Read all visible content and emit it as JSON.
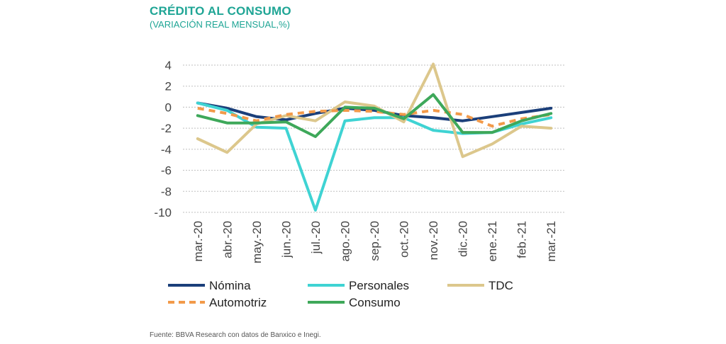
{
  "title": "CRÉDITO AL CONSUMO",
  "subtitle": "(VARIACIÓN REAL MENSUAL,%)",
  "source": "Fuente: BBVA Research con datos de Banxico e Inegi.",
  "chart_data": {
    "type": "line",
    "categories": [
      "mar.-20",
      "abr.-20",
      "may.-20",
      "jun.-20",
      "jul.-20",
      "ago.-20",
      "sep.-20",
      "oct.-20",
      "nov.-20",
      "dic.-20",
      "ene.-21",
      "feb.-21",
      "mar.-21"
    ],
    "ylim": [
      -10,
      4
    ],
    "yticks": [
      4,
      2,
      0,
      -2,
      -4,
      -6,
      -8,
      -10
    ],
    "grid": true,
    "legend_position": "bottom",
    "series": [
      {
        "name": "Nómina",
        "color": "#1b3f7a",
        "dash": false,
        "values": [
          0.4,
          -0.1,
          -0.9,
          -1.2,
          -0.6,
          -0.1,
          -0.3,
          -0.8,
          -1.0,
          -1.3,
          -0.9,
          -0.5,
          -0.1
        ]
      },
      {
        "name": "Personales",
        "color": "#3fd3d3",
        "dash": false,
        "values": [
          0.4,
          -0.3,
          -1.9,
          -2.0,
          -9.8,
          -1.3,
          -1.0,
          -1.0,
          -2.2,
          -2.5,
          -2.4,
          -1.6,
          -1.0
        ]
      },
      {
        "name": "TDC",
        "color": "#dcc78c",
        "dash": false,
        "values": [
          -3.0,
          -4.3,
          -1.6,
          -0.8,
          -1.3,
          0.5,
          0.1,
          -1.4,
          4.1,
          -4.7,
          -3.5,
          -1.8,
          -2.0
        ]
      },
      {
        "name": "Automotriz",
        "color": "#f29a4a",
        "dash": true,
        "values": [
          -0.1,
          -0.6,
          -1.3,
          -0.7,
          -0.4,
          -0.3,
          -0.4,
          -0.7,
          -0.3,
          -0.7,
          -1.8,
          -1.1,
          -0.7
        ]
      },
      {
        "name": "Consumo",
        "color": "#3ea85a",
        "dash": false,
        "values": [
          -0.8,
          -1.5,
          -1.5,
          -1.4,
          -2.8,
          0.0,
          -0.1,
          -1.1,
          1.2,
          -2.4,
          -2.4,
          -1.3,
          -0.6
        ]
      }
    ]
  }
}
